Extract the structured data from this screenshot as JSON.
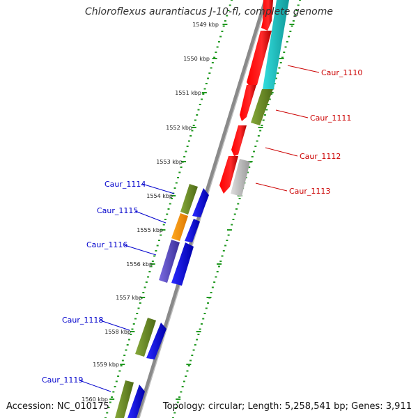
{
  "header": {
    "title": "Chloroflexus aurantiacus J-10-fl, complete genome"
  },
  "footer": {
    "accession": "Accession: NC_010175",
    "summary": "Topology: circular; Length: 5,258,541 bp; Genes: 3,911"
  },
  "colors": {
    "backbone": "#888888",
    "ticks": "#229922",
    "forward_labels": "#cc0000",
    "reverse_labels": "#0000cc",
    "red": "#ff0000",
    "cyan": "#22cccc",
    "olive": "#6b8e23",
    "blue": "#0000ff",
    "orange": "#ff9900",
    "purple": "#6a5acd",
    "gray": "#c0c0c0"
  },
  "scale": {
    "unit": "kbp",
    "labels": [
      "1549 kbp",
      "1550 kbp",
      "1551 kbp",
      "1552 kbp",
      "1553 kbp",
      "1554 kbp",
      "1555 kbp",
      "1556 kbp",
      "1557 kbp",
      "1558 kbp",
      "1559 kbp",
      "1560 kbp"
    ]
  },
  "forward_genes": [
    {
      "label": "Caur_1110"
    },
    {
      "label": "Caur_1111"
    },
    {
      "label": "Caur_1112"
    },
    {
      "label": "Caur_1113"
    }
  ],
  "reverse_genes": [
    {
      "label": "Caur_1114"
    },
    {
      "label": "Caur_1115"
    },
    {
      "label": "Caur_1116"
    },
    {
      "label": "Caur_1118"
    },
    {
      "label": "Caur_1119"
    }
  ]
}
